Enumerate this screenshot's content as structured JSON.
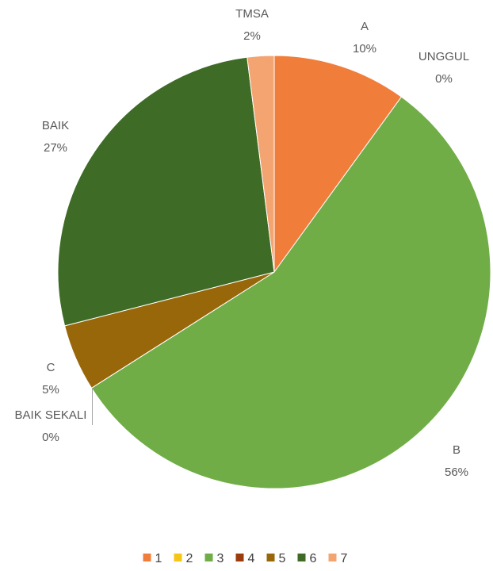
{
  "chart_data": {
    "type": "pie",
    "slices": [
      {
        "legend": "1",
        "name": "A",
        "pct_label": "10%",
        "value": 10,
        "color": "#F07D3A"
      },
      {
        "legend": "2",
        "name": "UNGGUL",
        "pct_label": "0%",
        "value": 0,
        "color": "#F5C518"
      },
      {
        "legend": "3",
        "name": "B",
        "pct_label": "56%",
        "value": 56,
        "color": "#70AD47"
      },
      {
        "legend": "4",
        "name": "BAIK SEKALI",
        "pct_label": "0%",
        "value": 0,
        "color": "#9C3B0E"
      },
      {
        "legend": "5",
        "name": "C",
        "pct_label": "5%",
        "value": 5,
        "color": "#98670A"
      },
      {
        "legend": "6",
        "name": "BAIK",
        "pct_label": "27%",
        "value": 27,
        "color": "#3E6B26"
      },
      {
        "legend": "7",
        "name": "TMSA",
        "pct_label": "2%",
        "value": 2,
        "color": "#F4A470"
      }
    ],
    "legend_position": "bottom"
  }
}
